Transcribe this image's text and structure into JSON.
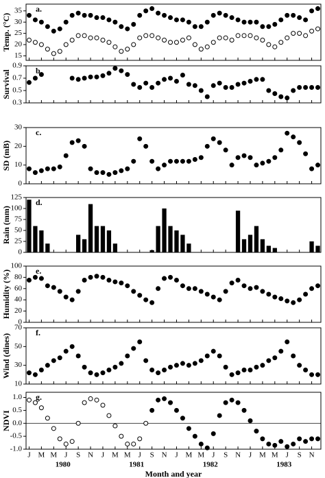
{
  "chart_data": [
    {
      "type": "scatter",
      "panel": "a.",
      "ylabel": "Temp. (°C)",
      "ylim": [
        13,
        38
      ],
      "yticks": [
        15,
        20,
        25,
        30,
        35
      ],
      "xlim": [
        0,
        48
      ],
      "x": [
        0.5,
        1.5,
        2.5,
        3.5,
        4.5,
        5.5,
        6.5,
        7.5,
        8.5,
        9.5,
        10.5,
        11.5,
        12.5,
        13.5,
        14.5,
        15.5,
        16.5,
        17.5,
        18.5,
        19.5,
        20.5,
        21.5,
        22.5,
        23.5,
        24.5,
        25.5,
        26.5,
        27.5,
        28.5,
        29.5,
        30.5,
        31.5,
        32.5,
        33.5,
        34.5,
        35.5,
        36.5,
        37.5,
        38.5,
        39.5,
        40.5,
        41.5,
        42.5,
        43.5,
        44.5,
        45.5,
        46.5,
        47.5
      ],
      "series": [
        {
          "color": "#000000",
          "marker": "filled",
          "values": [
            33,
            31,
            30,
            28,
            26,
            27,
            30,
            33,
            34,
            33,
            33,
            32,
            32,
            31,
            30,
            28,
            27,
            29,
            33,
            35,
            36,
            34,
            33,
            32,
            31,
            31,
            30,
            28,
            28,
            30,
            33,
            34,
            33,
            32,
            31,
            30,
            30,
            30,
            28,
            28,
            29,
            31,
            33,
            33,
            32,
            31,
            35,
            36
          ]
        },
        {
          "color": "#000000",
          "marker": "open",
          "values": [
            22,
            21,
            20,
            18,
            16,
            17,
            20,
            22,
            24,
            24,
            23,
            23,
            22,
            21,
            19,
            17,
            18,
            20,
            23,
            24,
            24,
            23,
            22,
            21,
            21,
            22,
            23,
            20,
            18,
            19,
            21,
            23,
            23,
            22,
            24,
            24,
            24,
            23,
            22,
            20,
            19,
            21,
            23,
            25,
            25,
            24,
            26,
            27
          ]
        }
      ]
    },
    {
      "type": "scatter",
      "panel": "b.",
      "ylabel": "Survival",
      "ylim": [
        0.3,
        0.9
      ],
      "yticks": [
        0.3,
        0.5,
        0.7,
        0.9
      ],
      "xlim": [
        0,
        48
      ],
      "x": [
        0.5,
        1.5,
        2.5,
        3.5,
        4.5,
        5.5,
        6.5,
        7.5,
        8.5,
        9.5,
        10.5,
        11.5,
        12.5,
        13.5,
        14.5,
        15.5,
        16.5,
        17.5,
        18.5,
        19.5,
        20.5,
        21.5,
        22.5,
        23.5,
        24.5,
        25.5,
        26.5,
        27.5,
        28.5,
        29.5,
        30.5,
        31.5,
        32.5,
        33.5,
        34.5,
        35.5,
        36.5,
        37.5,
        38.5,
        39.5,
        40.5,
        41.5,
        42.5,
        43.5,
        44.5,
        45.5,
        46.5,
        47.5
      ],
      "series": [
        {
          "color": "#000000",
          "marker": "filled",
          "values": [
            0.63,
            0.7,
            0.76,
            null,
            null,
            null,
            null,
            0.7,
            0.68,
            0.7,
            0.72,
            0.72,
            0.74,
            0.78,
            0.86,
            0.82,
            0.76,
            0.6,
            0.55,
            0.62,
            0.55,
            0.62,
            0.68,
            0.7,
            0.65,
            0.75,
            0.6,
            0.58,
            0.5,
            0.4,
            0.58,
            0.62,
            0.55,
            0.55,
            0.6,
            0.62,
            0.65,
            0.68,
            0.68,
            0.5,
            0.45,
            0.4,
            0.38,
            0.5,
            0.55,
            0.55,
            0.55,
            0.55
          ]
        }
      ]
    },
    {
      "type": "scatter",
      "panel": "c.",
      "ylabel": "SD (mB)",
      "ylim": [
        0,
        30
      ],
      "yticks": [
        0,
        10,
        20,
        30
      ],
      "xlim": [
        0,
        48
      ],
      "x": [
        0.5,
        1.5,
        2.5,
        3.5,
        4.5,
        5.5,
        6.5,
        7.5,
        8.5,
        9.5,
        10.5,
        11.5,
        12.5,
        13.5,
        14.5,
        15.5,
        16.5,
        17.5,
        18.5,
        19.5,
        20.5,
        21.5,
        22.5,
        23.5,
        24.5,
        25.5,
        26.5,
        27.5,
        28.5,
        29.5,
        30.5,
        31.5,
        32.5,
        33.5,
        34.5,
        35.5,
        36.5,
        37.5,
        38.5,
        39.5,
        40.5,
        41.5,
        42.5,
        43.5,
        44.5,
        45.5,
        46.5,
        47.5
      ],
      "series": [
        {
          "color": "#000000",
          "marker": "filled",
          "values": [
            8,
            6,
            7,
            8,
            8,
            9,
            15,
            22,
            23,
            20,
            8,
            6,
            6,
            5,
            6,
            7,
            8,
            12,
            24,
            20,
            12,
            8,
            10,
            12,
            12,
            12,
            12,
            13,
            14,
            20,
            24,
            22,
            18,
            10,
            14,
            15,
            14,
            10,
            11,
            12,
            14,
            18,
            27,
            25,
            22,
            16,
            8,
            10
          ]
        }
      ]
    },
    {
      "type": "bar",
      "panel": "d.",
      "ylabel": "Rain (mm)",
      "ylim": [
        0,
        125
      ],
      "yticks": [
        0,
        25,
        50,
        75,
        100,
        125
      ],
      "xlim": [
        0,
        48
      ],
      "x": [
        0.5,
        1.5,
        2.5,
        3.5,
        4.5,
        5.5,
        6.5,
        7.5,
        8.5,
        9.5,
        10.5,
        11.5,
        12.5,
        13.5,
        14.5,
        15.5,
        16.5,
        17.5,
        18.5,
        19.5,
        20.5,
        21.5,
        22.5,
        23.5,
        24.5,
        25.5,
        26.5,
        27.5,
        28.5,
        29.5,
        30.5,
        31.5,
        32.5,
        33.5,
        34.5,
        35.5,
        36.5,
        37.5,
        38.5,
        39.5,
        40.5,
        41.5,
        42.5,
        43.5,
        44.5,
        45.5,
        46.5,
        47.5
      ],
      "series": [
        {
          "color": "#000000",
          "values": [
            120,
            60,
            50,
            20,
            0,
            0,
            0,
            0,
            40,
            30,
            110,
            60,
            60,
            50,
            20,
            0,
            0,
            0,
            0,
            0,
            5,
            60,
            100,
            60,
            50,
            40,
            20,
            0,
            0,
            0,
            0,
            0,
            0,
            0,
            95,
            30,
            40,
            60,
            30,
            15,
            10,
            0,
            0,
            0,
            0,
            0,
            25,
            15
          ]
        }
      ]
    },
    {
      "type": "scatter",
      "panel": "e.",
      "ylabel": "Humidity (%)",
      "ylim": [
        0,
        100
      ],
      "yticks": [
        0,
        20,
        40,
        60,
        80,
        100
      ],
      "xlim": [
        0,
        48
      ],
      "x": [
        0.5,
        1.5,
        2.5,
        3.5,
        4.5,
        5.5,
        6.5,
        7.5,
        8.5,
        9.5,
        10.5,
        11.5,
        12.5,
        13.5,
        14.5,
        15.5,
        16.5,
        17.5,
        18.5,
        19.5,
        20.5,
        21.5,
        22.5,
        23.5,
        24.5,
        25.5,
        26.5,
        27.5,
        28.5,
        29.5,
        30.5,
        31.5,
        32.5,
        33.5,
        34.5,
        35.5,
        36.5,
        37.5,
        38.5,
        39.5,
        40.5,
        41.5,
        42.5,
        43.5,
        44.5,
        45.5,
        46.5,
        47.5
      ],
      "series": [
        {
          "color": "#000000",
          "marker": "filled",
          "values": [
            75,
            80,
            78,
            65,
            62,
            55,
            45,
            40,
            55,
            75,
            80,
            82,
            80,
            75,
            72,
            70,
            65,
            55,
            48,
            40,
            35,
            60,
            78,
            80,
            75,
            65,
            60,
            60,
            55,
            50,
            45,
            40,
            55,
            70,
            75,
            65,
            60,
            62,
            55,
            50,
            45,
            42,
            38,
            35,
            40,
            50,
            60,
            65
          ]
        }
      ]
    },
    {
      "type": "scatter",
      "panel": "f.",
      "ylabel": "Wind (dines)",
      "ylim": [
        10,
        70
      ],
      "yticks": [
        10,
        30,
        50,
        70
      ],
      "xlim": [
        0,
        48
      ],
      "x": [
        0.5,
        1.5,
        2.5,
        3.5,
        4.5,
        5.5,
        6.5,
        7.5,
        8.5,
        9.5,
        10.5,
        11.5,
        12.5,
        13.5,
        14.5,
        15.5,
        16.5,
        17.5,
        18.5,
        19.5,
        20.5,
        21.5,
        22.5,
        23.5,
        24.5,
        25.5,
        26.5,
        27.5,
        28.5,
        29.5,
        30.5,
        31.5,
        32.5,
        33.5,
        34.5,
        35.5,
        36.5,
        37.5,
        38.5,
        39.5,
        40.5,
        41.5,
        42.5,
        43.5,
        44.5,
        45.5,
        46.5,
        47.5
      ],
      "series": [
        {
          "color": "#000000",
          "marker": "filled",
          "values": [
            22,
            20,
            25,
            30,
            35,
            38,
            45,
            50,
            40,
            28,
            22,
            20,
            22,
            25,
            28,
            32,
            40,
            48,
            55,
            35,
            25,
            22,
            25,
            28,
            30,
            32,
            30,
            32,
            35,
            40,
            45,
            40,
            28,
            20,
            22,
            25,
            25,
            28,
            30,
            35,
            38,
            45,
            55,
            40,
            30,
            25,
            20,
            20
          ]
        }
      ]
    },
    {
      "type": "scatter",
      "panel": "g.",
      "ylabel": "NDVI",
      "ylim": [
        -1.0,
        1.2
      ],
      "yticks": [
        {
          "value": -1.0,
          "label": "-1.0"
        },
        -0.5,
        {
          "value": 0,
          "label": "0.0"
        },
        0.5,
        {
          "value": 1.0,
          "label": "1.0"
        }
      ],
      "xlim": [
        0,
        48
      ],
      "xlabel": "Month and year",
      "xticks": [
        {
          "value": 0.5,
          "label": "J"
        },
        {
          "value": 2.5,
          "label": "M"
        },
        {
          "value": 4.5,
          "label": "M"
        },
        {
          "value": 6.5,
          "label": "J"
        },
        {
          "value": 8.5,
          "label": "S"
        },
        {
          "value": 10.5,
          "label": "N"
        },
        {
          "value": 12.5,
          "label": "J"
        },
        {
          "value": 14.5,
          "label": "M"
        },
        {
          "value": 16.5,
          "label": "M"
        },
        {
          "value": 18.5,
          "label": "J"
        },
        {
          "value": 20.5,
          "label": "S"
        },
        {
          "value": 22.5,
          "label": "N"
        },
        {
          "value": 24.5,
          "label": "J"
        },
        {
          "value": 26.5,
          "label": "M"
        },
        {
          "value": 28.5,
          "label": "M"
        },
        {
          "value": 30.5,
          "label": "J"
        },
        {
          "value": 32.5,
          "label": "S"
        },
        {
          "value": 34.5,
          "label": "N"
        },
        {
          "value": 36.5,
          "label": "J"
        },
        {
          "value": 38.5,
          "label": "M"
        },
        {
          "value": 40.5,
          "label": "M"
        },
        {
          "value": 42.5,
          "label": "J"
        },
        {
          "value": 44.5,
          "label": "S"
        },
        {
          "value": 46.5,
          "label": "N"
        }
      ],
      "year_labels": [
        {
          "value": 6,
          "label": "1980"
        },
        {
          "value": 18,
          "label": "1981"
        },
        {
          "value": 30,
          "label": "1982"
        },
        {
          "value": 42,
          "label": "1983"
        }
      ],
      "x": [
        0.5,
        1.5,
        2.5,
        3.5,
        4.5,
        5.5,
        6.5,
        7.5,
        8.5,
        9.5,
        10.5,
        11.5,
        12.5,
        13.5,
        14.5,
        15.5,
        16.5,
        17.5,
        18.5,
        19.5,
        20.5,
        21.5,
        22.5,
        23.5,
        24.5,
        25.5,
        26.5,
        27.5,
        28.5,
        29.5,
        30.5,
        31.5,
        32.5,
        33.5,
        34.5,
        35.5,
        36.5,
        37.5,
        38.5,
        39.5,
        40.5,
        41.5,
        42.5,
        43.5,
        44.5,
        45.5,
        46.5,
        47.5
      ],
      "series": [
        {
          "color": "#000000",
          "marker": "open",
          "values": [
            0.9,
            0.8,
            0.6,
            0.2,
            -0.2,
            -0.6,
            -0.8,
            -0.7,
            0.0,
            0.8,
            0.95,
            0.9,
            0.7,
            0.3,
            -0.1,
            -0.5,
            -0.8,
            -0.8,
            -0.6,
            0.0,
            null,
            null,
            null,
            null,
            null,
            null,
            null,
            null,
            null,
            null,
            null,
            null,
            null,
            null,
            null,
            null,
            null,
            null,
            null,
            null,
            null,
            null,
            null,
            null,
            null,
            null,
            null,
            null
          ]
        },
        {
          "color": "#000000",
          "marker": "filled",
          "values": [
            null,
            null,
            null,
            null,
            null,
            null,
            null,
            null,
            null,
            null,
            null,
            null,
            null,
            null,
            null,
            null,
            null,
            null,
            null,
            null,
            0.5,
            0.9,
            0.95,
            0.8,
            0.5,
            0.2,
            -0.2,
            -0.5,
            -0.8,
            -0.95,
            -0.4,
            0.3,
            0.8,
            0.9,
            0.8,
            0.5,
            0.1,
            -0.3,
            -0.6,
            -0.8,
            -0.85,
            -0.7,
            -0.9,
            -0.8,
            -0.6,
            -0.7,
            -0.6,
            -0.6
          ]
        }
      ]
    }
  ]
}
